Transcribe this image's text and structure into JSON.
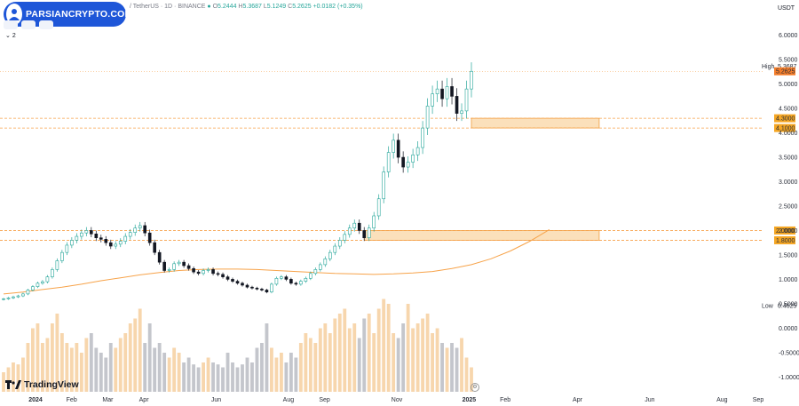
{
  "header": {
    "brand": "PARSIANCRYPTO.COM",
    "symbol": "/ TetherUS · 1D · BINANCE",
    "open_label": "O",
    "open": "5.2444",
    "high_label": "H",
    "high": "5.3687",
    "low_label": "L",
    "low": "5.1249",
    "close_label": "C",
    "close": "5.2625",
    "change": "+0.0182 (+0.35%)",
    "pane_count": "2"
  },
  "currency": "USDT",
  "watermark": "TradingView",
  "colors": {
    "up": "#26a69a",
    "down": "#131722",
    "sma": "#f7a34a",
    "zone_fill": "#fbe0bb",
    "zone_stroke": "#f0a040",
    "dash": "#f7a04a",
    "label_bg": "#f5a623",
    "vol_down": "#b0b3bb",
    "vol_up": "#f4c891"
  },
  "chart_data": {
    "type": "candlestick",
    "title": "",
    "xlabel": "",
    "ylabel": "",
    "ylim": [
      -1.05,
      6.25
    ],
    "grid": false,
    "price_ticks": [
      "6.0000",
      "5.5000",
      "5.0000",
      "4.5000",
      "4.0000",
      "3.5000",
      "3.0000",
      "2.5000",
      "2.0000",
      "1.5000",
      "1.0000",
      "0.5000",
      "0.0000",
      "-0.5000",
      "-1.0000"
    ],
    "price_tick_values": [
      6.0,
      5.5,
      5.0,
      4.5,
      4.0,
      3.5,
      3.0,
      2.5,
      2.0,
      1.5,
      1.0,
      0.5,
      0.0,
      -0.5,
      -1.0
    ],
    "x_ticks": [
      "2024",
      "Feb",
      "Mar",
      "Apr",
      "Jun",
      "Aug",
      "Sep",
      "Nov",
      "2025",
      "Feb",
      "Apr",
      "Jun",
      "Aug",
      "Sep"
    ],
    "x_tick_months": [
      0,
      1,
      2,
      3,
      5,
      7,
      8,
      10,
      12,
      13,
      15,
      17,
      19,
      20
    ],
    "date_start": "2023-12-15",
    "date_last": "2025-01-04",
    "series_close": [
      0.6,
      0.62,
      0.64,
      0.66,
      0.7,
      0.78,
      0.85,
      0.92,
      0.95,
      1.05,
      1.2,
      1.38,
      1.55,
      1.7,
      1.8,
      1.88,
      1.95,
      2.0,
      1.93,
      1.85,
      1.82,
      1.75,
      1.68,
      1.72,
      1.78,
      1.88,
      1.96,
      2.05,
      2.1,
      1.95,
      1.75,
      1.55,
      1.35,
      1.18,
      1.2,
      1.32,
      1.35,
      1.28,
      1.22,
      1.15,
      1.12,
      1.18,
      1.2,
      1.12,
      1.1,
      1.05,
      1.0,
      0.96,
      0.92,
      0.88,
      0.84,
      0.82,
      0.8,
      0.78,
      0.74,
      0.9,
      1.02,
      1.05,
      1.0,
      0.92,
      0.9,
      0.96,
      1.02,
      1.12,
      1.2,
      1.3,
      1.42,
      1.55,
      1.68,
      1.8,
      1.92,
      2.05,
      2.15,
      2.0,
      1.85,
      2.05,
      2.3,
      2.65,
      3.2,
      3.6,
      3.85,
      3.5,
      3.3,
      3.4,
      3.55,
      3.7,
      4.1,
      4.55,
      4.8,
      4.9,
      4.7,
      4.95,
      4.75,
      4.4,
      4.45,
      4.9,
      5.262
    ],
    "sma": [
      0.7,
      0.74,
      0.79,
      0.84,
      0.9,
      0.97,
      1.03,
      1.09,
      1.14,
      1.18,
      1.2,
      1.21,
      1.21,
      1.2,
      1.18,
      1.16,
      1.14,
      1.12,
      1.11,
      1.1,
      1.11,
      1.13,
      1.16,
      1.22,
      1.3,
      1.42,
      1.58,
      1.78,
      2.02
    ],
    "sma_start_index": 0,
    "sma_step": 4,
    "high_marker": 5.3687,
    "last_price": 5.2625,
    "low_marker": 0.4625,
    "low_marker_label": "Low",
    "high_marker_label": "High",
    "levels": [
      {
        "value": 4.3,
        "label": "4.3000"
      },
      {
        "value": 4.1,
        "label": "4.1000"
      },
      {
        "value": 2.0,
        "label": "2.0000"
      },
      {
        "value": 1.8,
        "label": "1.8000"
      }
    ],
    "zones": [
      {
        "top": 4.3,
        "bottom": 4.1,
        "from_index": 96
      },
      {
        "top": 2.0,
        "bottom": 1.8,
        "from_index": 74
      }
    ],
    "zone_end_month": 15.6,
    "volume": [
      0.2,
      0.25,
      0.3,
      0.28,
      0.35,
      0.5,
      0.65,
      0.7,
      0.5,
      0.55,
      0.7,
      0.8,
      0.6,
      0.5,
      0.45,
      0.5,
      0.4,
      0.55,
      0.6,
      0.45,
      0.4,
      0.35,
      0.5,
      0.45,
      0.55,
      0.6,
      0.7,
      0.75,
      0.85,
      0.5,
      0.7,
      0.45,
      0.5,
      0.4,
      0.35,
      0.45,
      0.4,
      0.3,
      0.35,
      0.28,
      0.25,
      0.3,
      0.35,
      0.3,
      0.28,
      0.25,
      0.4,
      0.3,
      0.25,
      0.28,
      0.35,
      0.3,
      0.45,
      0.5,
      0.7,
      0.45,
      0.35,
      0.4,
      0.3,
      0.4,
      0.35,
      0.5,
      0.6,
      0.55,
      0.5,
      0.65,
      0.7,
      0.6,
      0.75,
      0.8,
      0.85,
      0.65,
      0.7,
      0.55,
      0.75,
      0.8,
      0.6,
      0.85,
      0.95,
      0.9,
      0.6,
      0.55,
      0.7,
      0.9,
      0.65,
      0.7,
      0.75,
      0.8,
      0.6,
      0.65,
      0.5,
      0.45,
      0.5,
      0.45,
      0.55,
      0.35,
      0.25
    ]
  }
}
